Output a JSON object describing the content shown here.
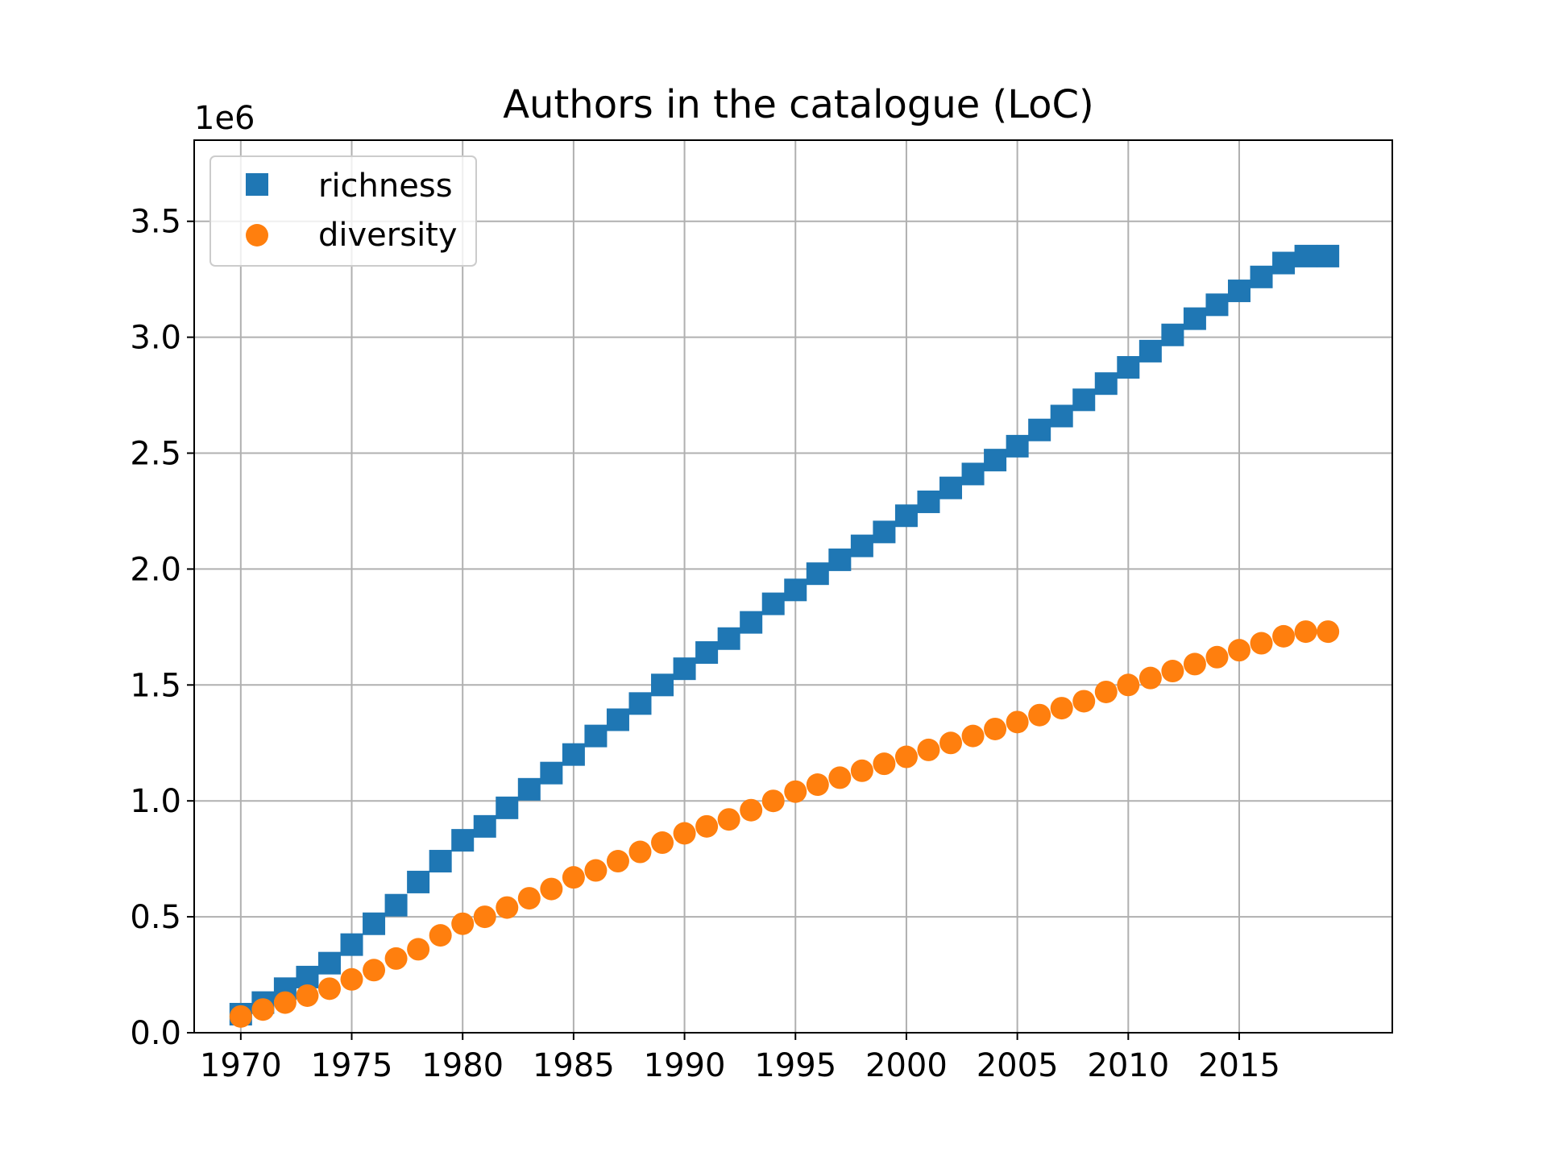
{
  "chart_data": {
    "type": "scatter",
    "title": "Authors in the catalogue (LoC)",
    "xlabel": "",
    "ylabel": "",
    "y_offset_label": "1e6",
    "y_scale": 1000000,
    "xlim": [
      1967.9,
      2021.9
    ],
    "ylim": [
      0,
      3.85
    ],
    "x_ticks": [
      1970,
      1975,
      1980,
      1985,
      1990,
      1995,
      2000,
      2005,
      2010,
      2015
    ],
    "x_tick_labels": [
      "1970",
      "1975",
      "1980",
      "1985",
      "1990",
      "1995",
      "2000",
      "2005",
      "2010",
      "2015"
    ],
    "y_ticks": [
      0.0,
      0.5,
      1.0,
      1.5,
      2.0,
      2.5,
      3.0,
      3.5
    ],
    "y_tick_labels": [
      "0.0",
      "0.5",
      "1.0",
      "1.5",
      "2.0",
      "2.5",
      "3.0",
      "3.5"
    ],
    "grid": true,
    "legend_position": "top-left",
    "x": [
      1970,
      1971,
      1972,
      1973,
      1974,
      1975,
      1976,
      1977,
      1978,
      1979,
      1980,
      1981,
      1982,
      1983,
      1984,
      1985,
      1986,
      1987,
      1988,
      1989,
      1990,
      1991,
      1992,
      1993,
      1994,
      1995,
      1996,
      1997,
      1998,
      1999,
      2000,
      2001,
      2002,
      2003,
      2004,
      2005,
      2006,
      2007,
      2008,
      2009,
      2010,
      2011,
      2012,
      2013,
      2014,
      2015,
      2016,
      2017,
      2018,
      2019
    ],
    "series": [
      {
        "name": "richness",
        "marker": "square",
        "color": "#1f77b4",
        "values": [
          0.08,
          0.13,
          0.19,
          0.24,
          0.3,
          0.38,
          0.47,
          0.55,
          0.65,
          0.74,
          0.83,
          0.89,
          0.97,
          1.05,
          1.12,
          1.2,
          1.28,
          1.35,
          1.42,
          1.5,
          1.57,
          1.64,
          1.7,
          1.77,
          1.85,
          1.91,
          1.98,
          2.04,
          2.1,
          2.16,
          2.23,
          2.29,
          2.35,
          2.41,
          2.47,
          2.53,
          2.6,
          2.66,
          2.73,
          2.8,
          2.87,
          2.94,
          3.01,
          3.08,
          3.14,
          3.2,
          3.26,
          3.32,
          3.35,
          3.35
        ]
      },
      {
        "name": "diversity",
        "marker": "circle",
        "color": "#ff7f0e",
        "values": [
          0.07,
          0.1,
          0.13,
          0.16,
          0.19,
          0.23,
          0.27,
          0.32,
          0.36,
          0.42,
          0.47,
          0.5,
          0.54,
          0.58,
          0.62,
          0.67,
          0.7,
          0.74,
          0.78,
          0.82,
          0.86,
          0.89,
          0.92,
          0.96,
          1.0,
          1.04,
          1.07,
          1.1,
          1.13,
          1.16,
          1.19,
          1.22,
          1.25,
          1.28,
          1.31,
          1.34,
          1.37,
          1.4,
          1.43,
          1.47,
          1.5,
          1.53,
          1.56,
          1.59,
          1.62,
          1.65,
          1.68,
          1.71,
          1.73,
          1.73
        ]
      }
    ]
  }
}
